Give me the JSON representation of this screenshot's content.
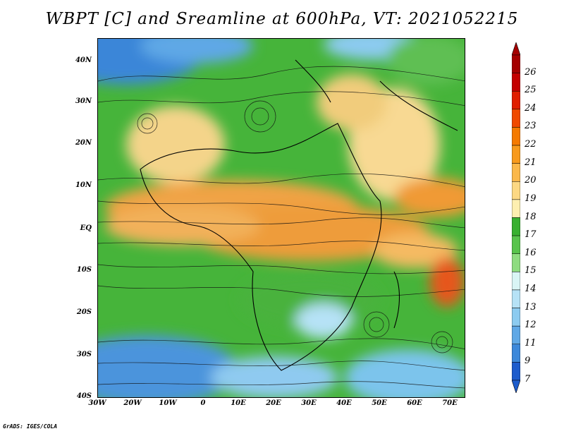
{
  "title": "WBPT [C] and Sreamline at 600hPa, VT: 2021052215",
  "y_axis_labels": [
    "40N",
    "30N",
    "20N",
    "10N",
    "EQ",
    "10S",
    "20S",
    "30S",
    "40S"
  ],
  "x_axis_labels": [
    "30W",
    "20W",
    "10W",
    "0",
    "10E",
    "20E",
    "30E",
    "40E",
    "50E",
    "60E",
    "70E"
  ],
  "colorbar": {
    "labels": [
      "26",
      "25",
      "24",
      "23",
      "22",
      "21",
      "20",
      "19",
      "18",
      "17",
      "16",
      "15",
      "14",
      "13",
      "12",
      "11",
      "9",
      "7"
    ],
    "colors": [
      "#a50000",
      "#c40000",
      "#e01e00",
      "#f04a00",
      "#f57a00",
      "#f89a1c",
      "#fbb84a",
      "#fcd883",
      "#fdefb0",
      "#38b030",
      "#58c44c",
      "#8edc80",
      "#d9f5f5",
      "#b6e2f6",
      "#8ccbf0",
      "#5fa8e6",
      "#3c88da",
      "#1d5ccc"
    ]
  },
  "footer": "GrADS: IGES/COLA"
}
